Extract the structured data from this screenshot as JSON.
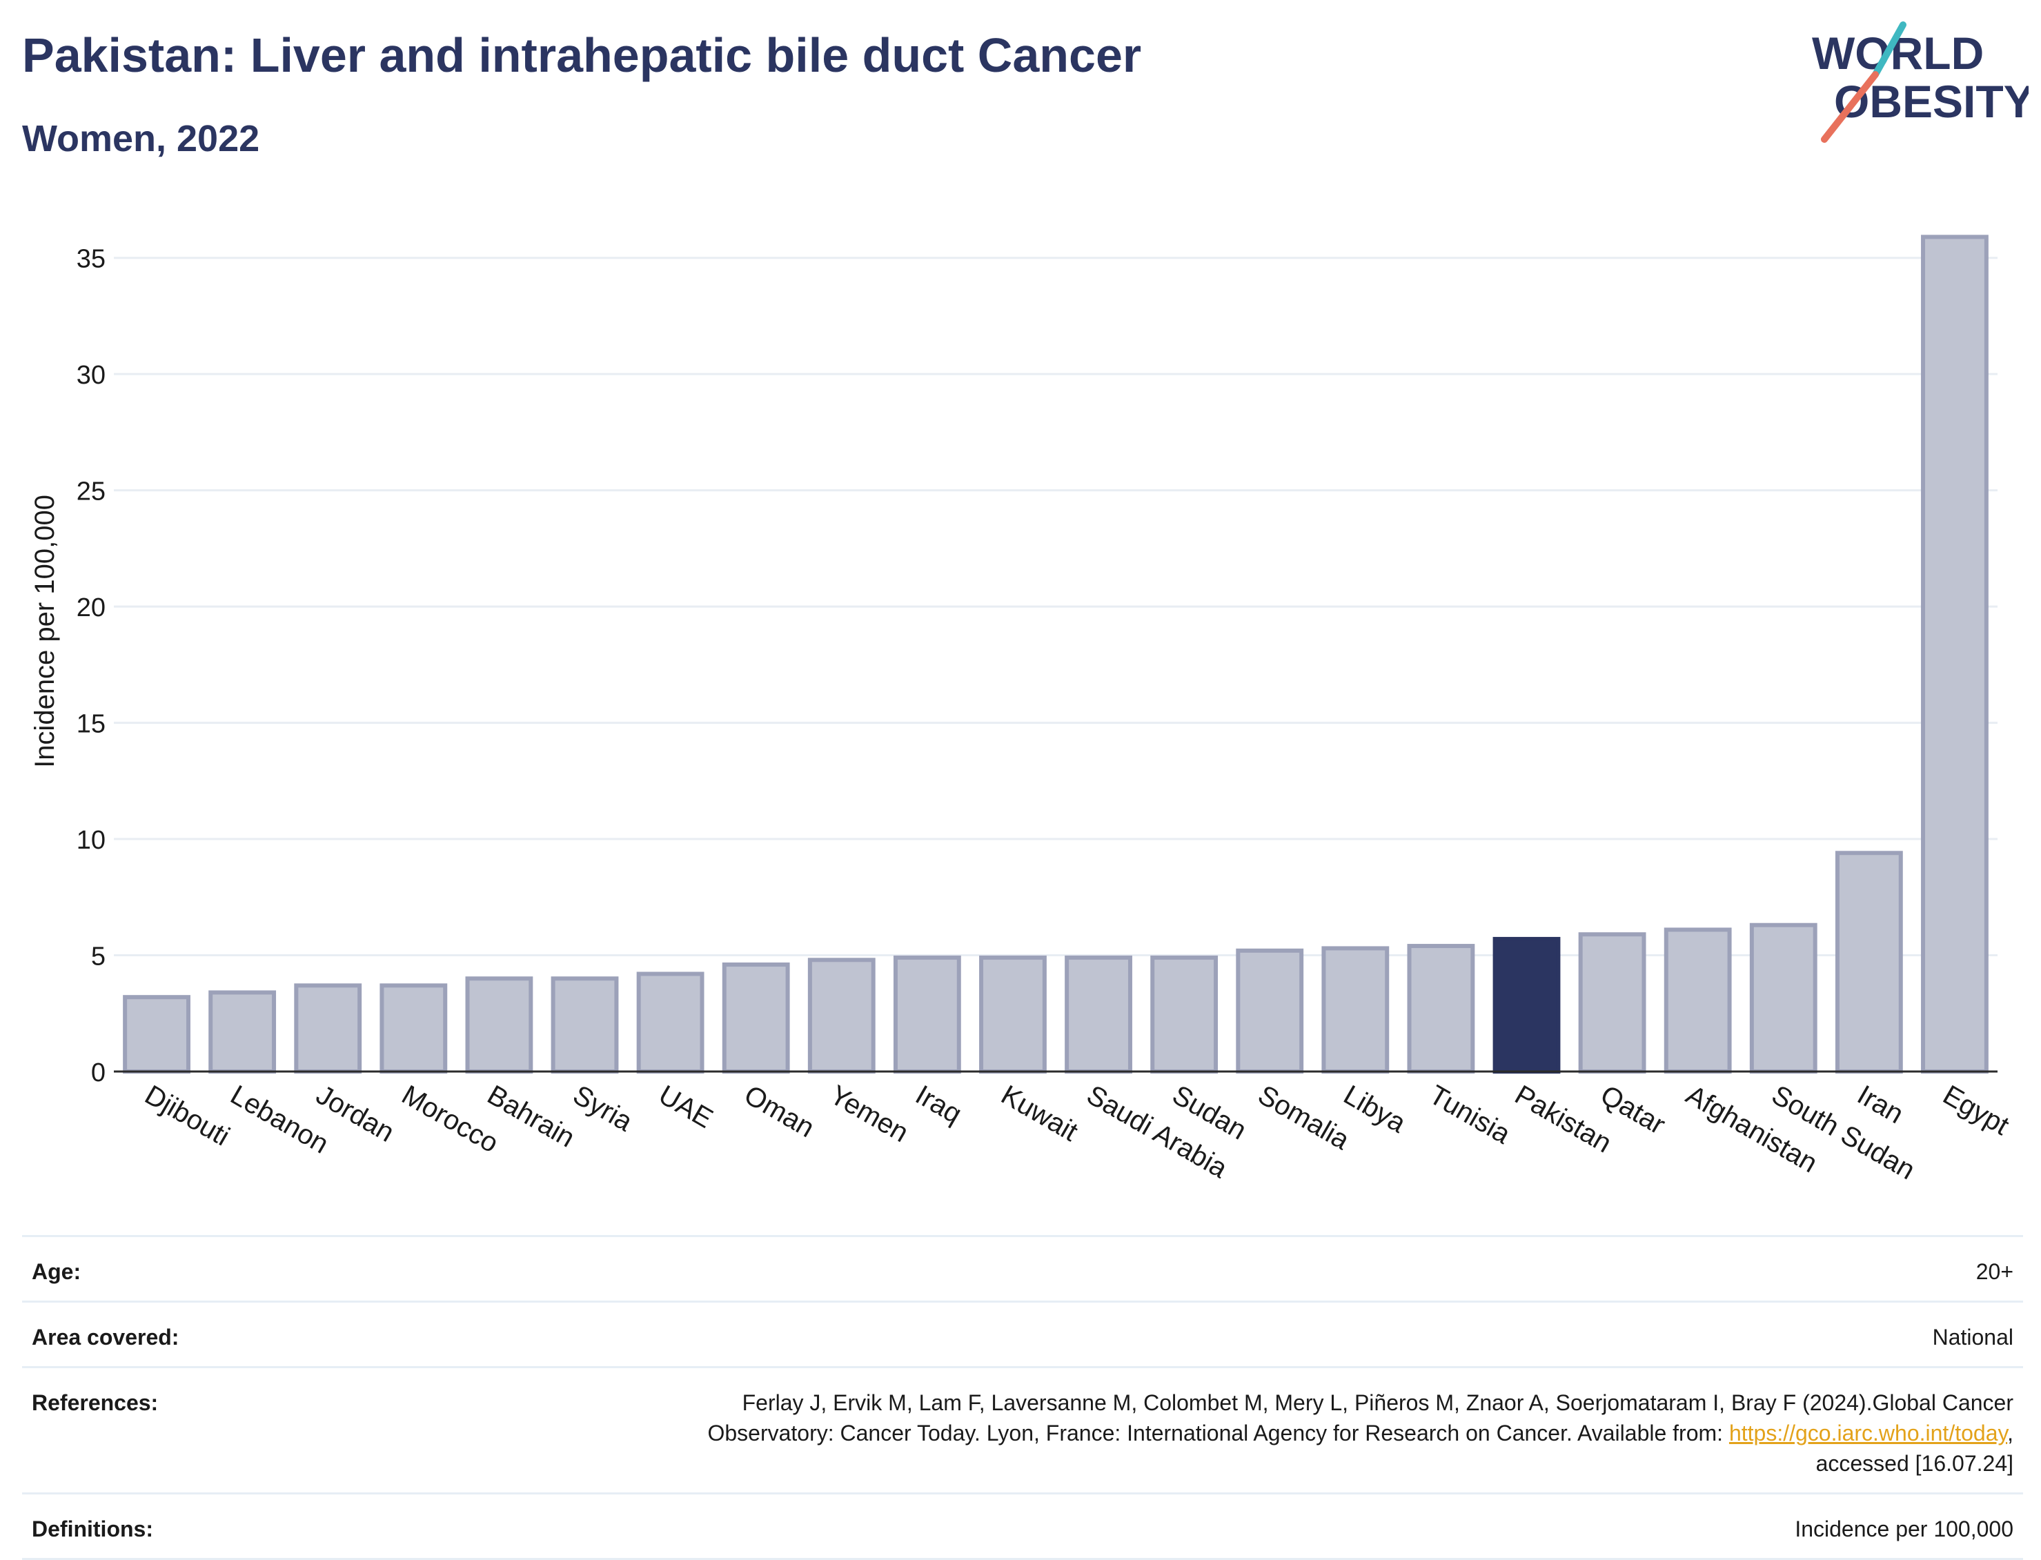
{
  "header": {
    "title": "Pakistan: Liver and intrahepatic bile duct Cancer",
    "subtitle": "Women, 2022"
  },
  "logo": {
    "line1": "WORLD",
    "line2": "OBESITY",
    "colors": {
      "text": "#2b3561",
      "slash_teal": "#3fb8c1",
      "slash_coral": "#e8715c"
    }
  },
  "chart_data": {
    "type": "bar",
    "ylabel": "Incidence per 100,000",
    "xlabel": "",
    "ylim": [
      0,
      36
    ],
    "yticks": [
      0,
      5,
      10,
      15,
      20,
      25,
      30,
      35
    ],
    "grid": true,
    "legend": "none",
    "highlight": "Pakistan",
    "colors": {
      "bar": "#bfc3d1",
      "bar_edge": "#9ca1b9",
      "highlight": "#2b3561",
      "grid": "#e8edf3"
    },
    "categories": [
      "Djibouti",
      "Lebanon",
      "Jordan",
      "Morocco",
      "Bahrain",
      "Syria",
      "UAE",
      "Oman",
      "Yemen",
      "Iraq",
      "Kuwait",
      "Saudi Arabia",
      "Sudan",
      "Somalia",
      "Libya",
      "Tunisia",
      "Pakistan",
      "Qatar",
      "Afghanistan",
      "South Sudan",
      "Iran",
      "Egypt"
    ],
    "values": [
      3.2,
      3.4,
      3.7,
      3.7,
      4.0,
      4.0,
      4.2,
      4.6,
      4.8,
      4.9,
      4.9,
      4.9,
      4.9,
      5.2,
      5.3,
      5.4,
      5.7,
      5.9,
      6.1,
      6.3,
      9.4,
      35.9
    ]
  },
  "info": [
    {
      "label": "Age:",
      "value": "20+"
    },
    {
      "label": "Area covered:",
      "value": "National"
    },
    {
      "label": "References:",
      "value_lines": [
        "Ferlay J, Ervik M, Lam F, Laversanne M, Colombet M, Mery L, Piñeros M, Znaor A, Soerjomataram I, Bray F (2024).Global Cancer",
        "Observatory: Cancer Today. Lyon, France: International Agency for Research on Cancer. Available from: ",
        "https://gco.iarc.who.int/today",
        ",",
        "accessed [16.07.24]"
      ]
    },
    {
      "label": "Definitions:",
      "value": "Incidence per 100,000"
    }
  ]
}
